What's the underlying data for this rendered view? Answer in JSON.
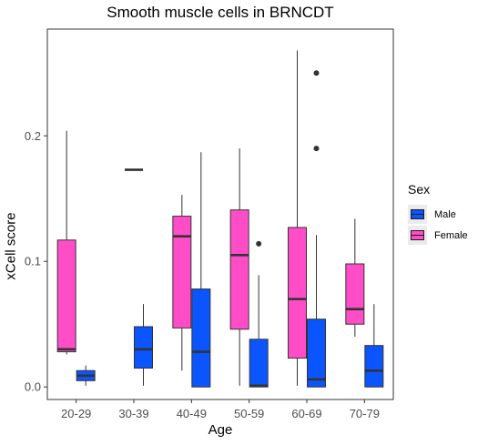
{
  "chart_data": {
    "type": "boxplot",
    "title": "Smooth muscle cells in BRNCDT",
    "xlabel": "Age",
    "ylabel": "xCell score",
    "categories": [
      "20-29",
      "30-39",
      "40-49",
      "50-59",
      "60-69",
      "70-79"
    ],
    "ylim": [
      -0.01,
      0.285
    ],
    "yticks": [
      0.0,
      0.1,
      0.2
    ],
    "ytick_labels": [
      "0.0",
      "0.1",
      "0.2"
    ],
    "legend": {
      "title": "Sex",
      "position": "right",
      "entries": [
        {
          "name": "Male",
          "color": "#0b55ff"
        },
        {
          "name": "Female",
          "color": "#ff4dc8"
        }
      ]
    },
    "series": [
      {
        "name": "Female",
        "color": "#ff4dc8",
        "boxes": [
          {
            "category": "20-29",
            "min": 0.026,
            "q1": 0.028,
            "median": 0.03,
            "q3": 0.117,
            "max": 0.204,
            "outliers": []
          },
          {
            "category": "30-39",
            "min": 0.173,
            "q1": 0.173,
            "median": 0.173,
            "q3": 0.173,
            "max": 0.173,
            "outliers": []
          },
          {
            "category": "40-49",
            "min": 0.013,
            "q1": 0.047,
            "median": 0.12,
            "q3": 0.136,
            "max": 0.153,
            "outliers": []
          },
          {
            "category": "50-59",
            "min": 0.001,
            "q1": 0.046,
            "median": 0.105,
            "q3": 0.141,
            "max": 0.19,
            "outliers": []
          },
          {
            "category": "60-69",
            "min": 0.001,
            "q1": 0.023,
            "median": 0.07,
            "q3": 0.127,
            "max": 0.268,
            "outliers": []
          },
          {
            "category": "70-79",
            "min": 0.04,
            "q1": 0.05,
            "median": 0.062,
            "q3": 0.098,
            "max": 0.134,
            "outliers": []
          }
        ]
      },
      {
        "name": "Male",
        "color": "#0b55ff",
        "boxes": [
          {
            "category": "20-29",
            "min": 0.001,
            "q1": 0.005,
            "median": 0.009,
            "q3": 0.013,
            "max": 0.017,
            "outliers": []
          },
          {
            "category": "30-39",
            "min": 0.001,
            "q1": 0.015,
            "median": 0.03,
            "q3": 0.048,
            "max": 0.066,
            "outliers": []
          },
          {
            "category": "40-49",
            "min": 0.0,
            "q1": 0.0,
            "median": 0.028,
            "q3": 0.078,
            "max": 0.187,
            "outliers": []
          },
          {
            "category": "50-59",
            "min": 0.0,
            "q1": 0.0,
            "median": 0.001,
            "q3": 0.038,
            "max": 0.089,
            "outliers": [
              0.114
            ]
          },
          {
            "category": "60-69",
            "min": 0.0,
            "q1": 0.0,
            "median": 0.006,
            "q3": 0.054,
            "max": 0.121,
            "outliers": [
              0.19,
              0.25
            ]
          },
          {
            "category": "70-79",
            "min": 0.0,
            "q1": 0.0,
            "median": 0.013,
            "q3": 0.033,
            "max": 0.066,
            "outliers": []
          }
        ]
      }
    ]
  }
}
